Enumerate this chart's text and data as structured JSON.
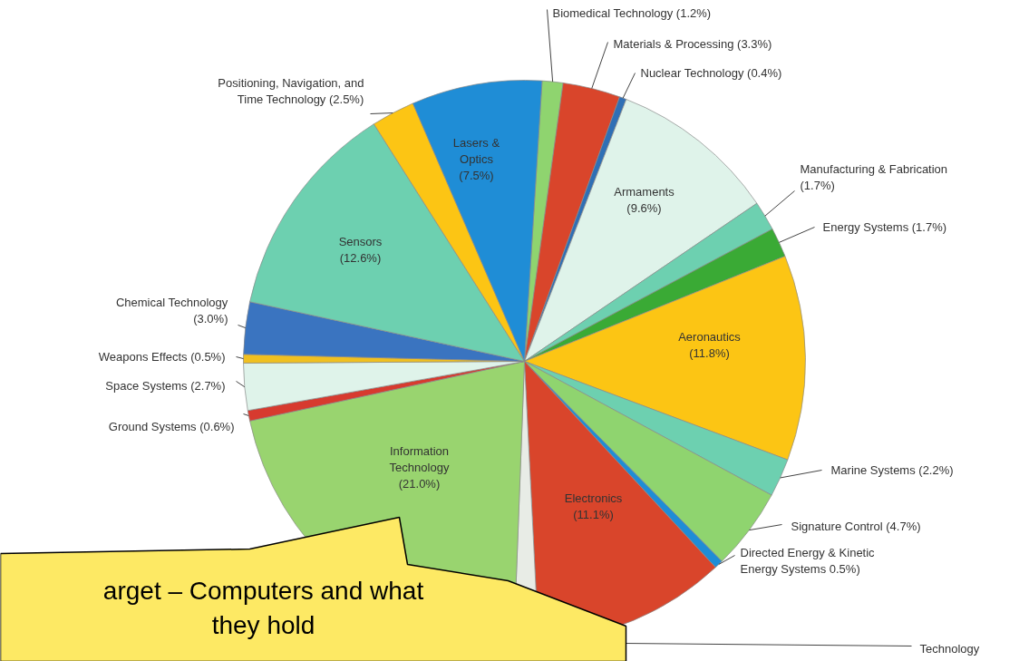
{
  "chart_data": {
    "type": "pie",
    "categories": [
      "Biomedical Technology",
      "Materials & Processing",
      "Nuclear Technology",
      "Armaments",
      "Manufacturing & Fabrication",
      "Energy Systems",
      "Aeronautics",
      "Marine Systems",
      "Signature Control",
      "Directed Energy & Kinetic\nEnergy Systems",
      "Electronics",
      "Technology",
      "Information\nTechnology",
      "Ground Systems",
      "Space Systems",
      "Weapons Effects",
      "Chemical Technology",
      "Sensors",
      "Positioning, Navigation, and\nTime Technology",
      "Lasers &\nOptics"
    ],
    "values": [
      1.2,
      3.3,
      0.4,
      9.6,
      1.7,
      1.7,
      11.8,
      2.2,
      4.7,
      0.5,
      11.1,
      1.4,
      21.0,
      0.6,
      2.7,
      0.5,
      3.0,
      12.6,
      2.5,
      7.5
    ],
    "colors": [
      "#8fd46f",
      "#d9452b",
      "#2f6fb5",
      "#dff3ea",
      "#6dd0b0",
      "#3aaa35",
      "#fcc514",
      "#6dd0b0",
      "#8fd46f",
      "#1f8dd6",
      "#d9452b",
      "#e8ece6",
      "#99d46f",
      "#d73a2f",
      "#dff3ea",
      "#f0c020",
      "#3a74c0",
      "#6dd0b0",
      "#fcc514",
      "#1f8dd6"
    ],
    "value_labels": [
      "(1.2%)",
      "(3.3%)",
      "(0.4%)",
      "(9.6%)",
      "(1.7%)",
      "(1.7%)",
      "(11.8%)",
      "(2.2%)",
      "(4.7%)",
      "0.5%)",
      "(11.1%)",
      null,
      "(21.0%)",
      "(0.6%)",
      "(2.7%)",
      "(0.5%)",
      "(3.0%)",
      "(12.6%)",
      "(2.5%)",
      "(7.5%)"
    ],
    "annotations": [
      "arget – Computers and what\nthey hold"
    ]
  }
}
